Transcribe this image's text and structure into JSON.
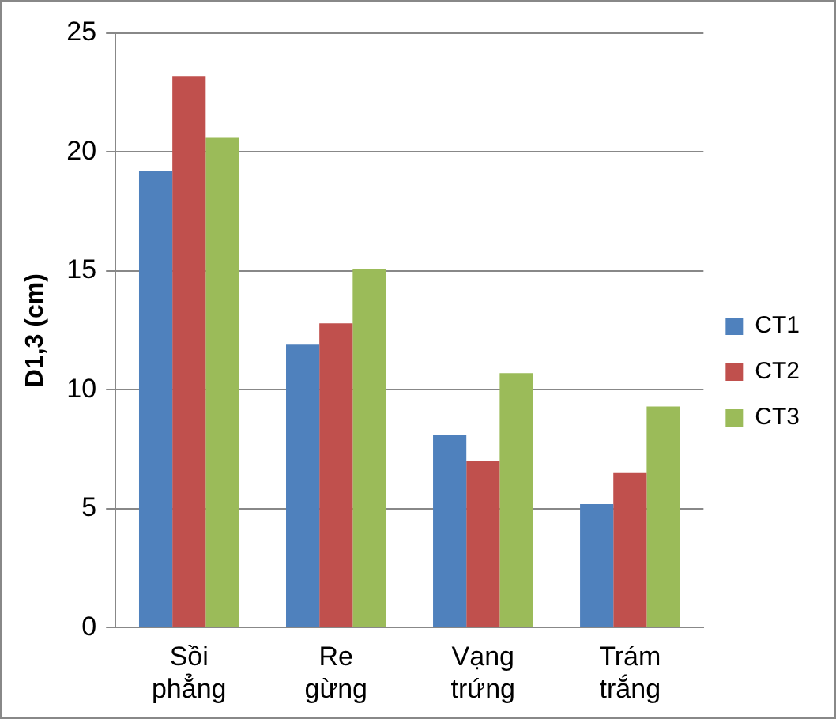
{
  "chart_data": {
    "type": "bar",
    "ylabel": "D1,3 (cm)",
    "categories": [
      "Sồi phẳng",
      "Re gừng",
      "Vạng trứng",
      "Trám trắng"
    ],
    "series": [
      {
        "name": "CT1",
        "color": "#4f81bd",
        "values": [
          19.2,
          11.9,
          8.1,
          5.2
        ]
      },
      {
        "name": "CT2",
        "color": "#c0504d",
        "values": [
          23.2,
          12.8,
          7.0,
          6.5
        ]
      },
      {
        "name": "CT3",
        "color": "#9bbb59",
        "values": [
          20.6,
          15.1,
          10.7,
          9.3
        ]
      }
    ],
    "ylim": [
      0,
      25
    ],
    "yticks": [
      0,
      5,
      10,
      15,
      20,
      25
    ],
    "grid": "y",
    "legend": "right"
  }
}
